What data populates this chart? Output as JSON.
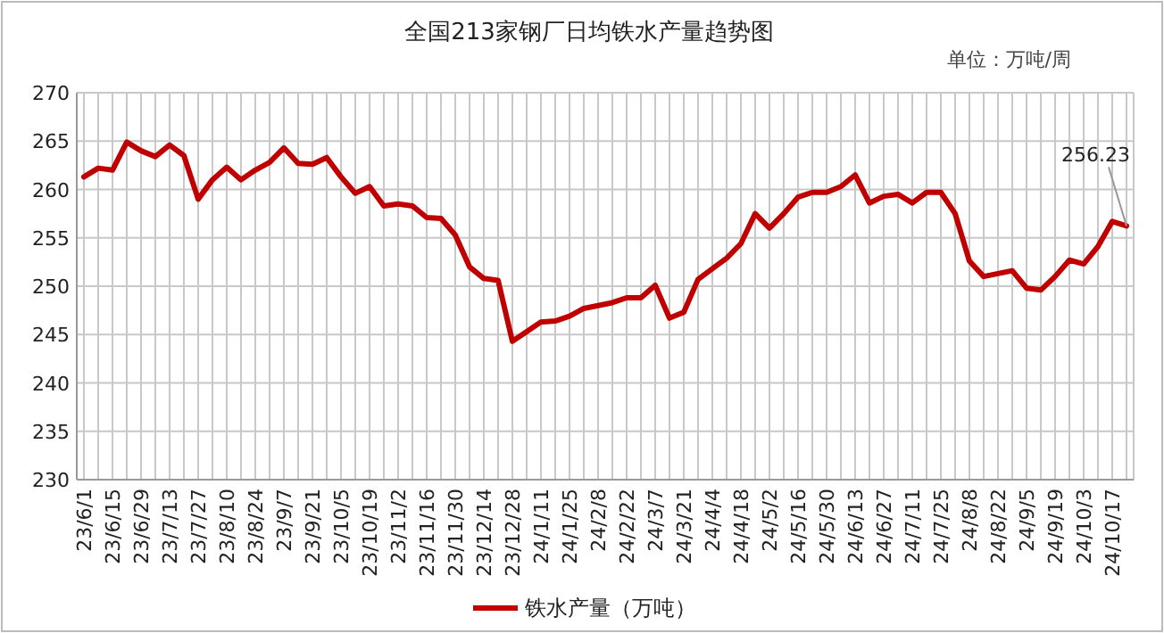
{
  "chart_data": {
    "type": "line",
    "title": "全国213家钢厂日均铁水产量趋势图",
    "annotations": [
      "单位：万吨/周"
    ],
    "categories": [
      "23/6/1",
      null,
      "23/6/15",
      null,
      "23/6/29",
      null,
      "23/7/13",
      null,
      "23/7/27",
      null,
      "23/8/10",
      null,
      "23/8/24",
      null,
      "23/9/7",
      null,
      "23/9/21",
      null,
      "23/10/5",
      null,
      "23/10/19",
      null,
      "23/11/2",
      null,
      "23/11/16",
      null,
      "23/11/30",
      null,
      "23/12/14",
      null,
      "23/12/28",
      null,
      "24/1/11",
      null,
      "24/1/25",
      null,
      "24/2/8",
      null,
      "24/2/22",
      null,
      "24/3/7",
      null,
      "24/3/21",
      null,
      "24/4/4",
      null,
      "24/4/18",
      null,
      "24/5/2",
      null,
      "24/5/16",
      null,
      "24/5/30",
      null,
      "24/6/13",
      null,
      "24/6/27",
      null,
      "24/7/11",
      null,
      "24/7/25",
      null,
      "24/8/8",
      null,
      "24/8/22",
      null,
      "24/9/5",
      null,
      "24/9/19",
      null,
      "24/10/3",
      null,
      "24/10/17",
      null
    ],
    "series": [
      {
        "name": "铁水产量（万吨）",
        "color": "#c00000",
        "values": [
          261.3,
          262.2,
          262.0,
          264.9,
          264.0,
          263.4,
          264.6,
          263.5,
          259.0,
          261.0,
          262.3,
          261.0,
          262.0,
          262.8,
          264.3,
          262.7,
          262.6,
          263.3,
          261.3,
          259.6,
          260.3,
          258.3,
          258.5,
          258.3,
          257.1,
          257.0,
          255.3,
          252.0,
          250.8,
          250.6,
          244.3,
          245.3,
          246.3,
          246.4,
          246.9,
          247.7,
          248.0,
          248.3,
          248.8,
          248.8,
          250.1,
          246.7,
          247.3,
          250.7,
          251.8,
          252.9,
          254.4,
          257.5,
          256.0,
          257.5,
          259.2,
          259.7,
          259.7,
          260.3,
          261.5,
          258.6,
          259.3,
          259.5,
          258.6,
          259.7,
          259.7,
          257.5,
          252.6,
          251.0,
          251.3,
          251.6,
          249.8,
          249.6,
          251.0,
          252.7,
          252.3,
          254.1,
          256.7,
          256.23
        ],
        "value_labels": [
          null,
          null,
          null,
          null,
          null,
          null,
          null,
          null,
          null,
          null,
          null,
          null,
          null,
          null,
          null,
          null,
          null,
          null,
          null,
          null,
          null,
          null,
          null,
          null,
          null,
          null,
          null,
          null,
          null,
          null,
          null,
          null,
          null,
          null,
          null,
          null,
          null,
          null,
          null,
          null,
          null,
          null,
          null,
          null,
          null,
          null,
          null,
          null,
          null,
          null,
          null,
          null,
          null,
          null,
          null,
          null,
          null,
          null,
          null,
          null,
          null,
          null,
          null,
          null,
          null,
          null,
          null,
          null,
          null,
          null,
          null,
          null,
          null,
          "256.23"
        ]
      }
    ],
    "ylim": [
      230,
      270
    ],
    "yticks": [
      230,
      235,
      240,
      245,
      250,
      255,
      260,
      265,
      270
    ],
    "grid": true,
    "legend": "bottom",
    "marker": "none",
    "line_style": "solid"
  }
}
